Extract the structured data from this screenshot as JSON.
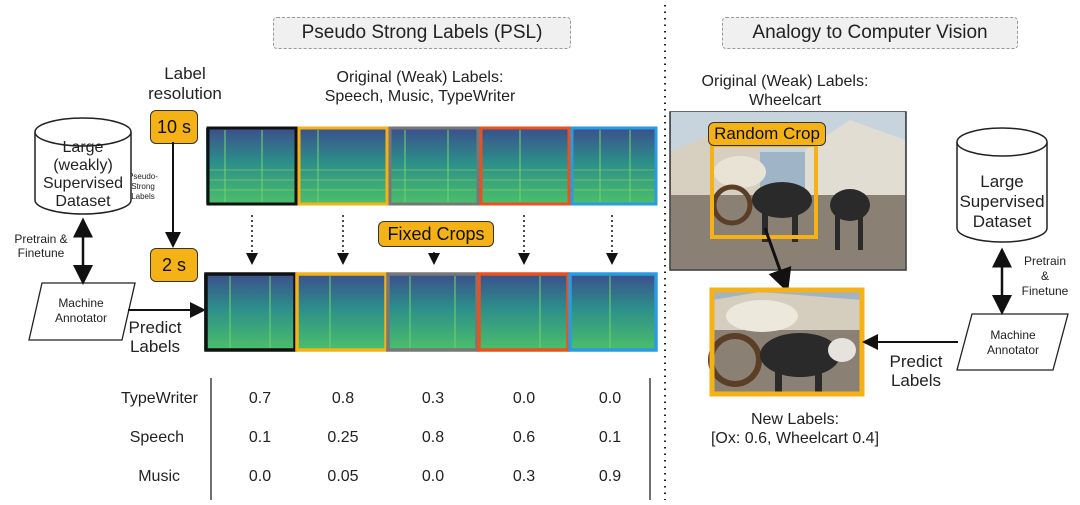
{
  "left_panel": {
    "title": "Pseudo Strong Labels (PSL)",
    "label_resolution": [
      "Label",
      "resolution"
    ],
    "res_top": "10 s",
    "res_bottom": "2 s",
    "pseudo_strong_labels": [
      "Pseudo-",
      "Strong",
      "Labels"
    ],
    "original_labels": [
      "Original (Weak) Labels:",
      "Speech, Music, TypeWriter"
    ],
    "dataset": [
      "Large",
      "(weakly)",
      "Supervised",
      "Dataset"
    ],
    "pretrain": [
      "Pretrain &",
      "Finetune"
    ],
    "annotator": [
      "Machine",
      "Annotator"
    ],
    "predict": [
      "Predict",
      "Labels"
    ],
    "fixed_crops": "Fixed Crops",
    "table": {
      "rows": [
        {
          "label": "TypeWriter",
          "values": [
            "0.7",
            "0.8",
            "0.3",
            "0.0",
            "0.0"
          ]
        },
        {
          "label": "Speech",
          "values": [
            "0.1",
            "0.25",
            "0.8",
            "0.6",
            "0.1"
          ]
        },
        {
          "label": "Music",
          "values": [
            "0.0",
            "0.05",
            "0.0",
            "0.3",
            "0.9"
          ]
        }
      ]
    },
    "crop_colors": [
      "#111111",
      "#f5b217",
      "#777777",
      "#e8521f",
      "#2a9be0"
    ]
  },
  "right_panel": {
    "title": "Analogy to Computer Vision",
    "original_labels": [
      "Original (Weak) Labels:",
      "Wheelcart"
    ],
    "random_crop": "Random Crop",
    "dataset": [
      "Large",
      "Supervised",
      "Dataset"
    ],
    "pretrain": [
      "Pretrain",
      "&",
      "Finetune"
    ],
    "annotator": [
      "Machine",
      "Annotator"
    ],
    "predict": [
      "Predict",
      "Labels"
    ],
    "new_labels": [
      "New Labels:",
      "[Ox: 0.6, Wheelcart 0.4]"
    ]
  }
}
